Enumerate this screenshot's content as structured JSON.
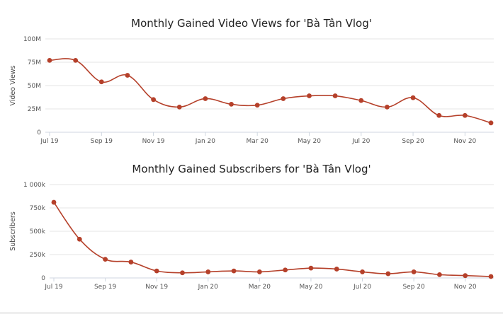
{
  "chart_data": [
    {
      "type": "line",
      "title": "Monthly Gained Video Views for 'Bà Tân Vlog'",
      "ylabel": "Video Views",
      "xlabel": "",
      "ylim": [
        0,
        100000000
      ],
      "y_ticks": [
        0,
        25000000,
        50000000,
        75000000,
        100000000
      ],
      "y_tick_labels": [
        "0",
        "25M",
        "50M",
        "75M",
        "100M"
      ],
      "x_tick_labels": [
        "Jul 19",
        "Sep 19",
        "Nov 19",
        "Jan 20",
        "Mar 20",
        "May 20",
        "Jul 20",
        "Sep 20",
        "Nov 20"
      ],
      "x_tick_months": [
        0,
        2,
        4,
        6,
        8,
        10,
        12,
        14,
        16
      ],
      "color": "#b5402a",
      "grid": true,
      "series": [
        {
          "x": [
            "2019-07",
            "2019-08",
            "2019-09",
            "2019-10",
            "2019-11",
            "2019-12",
            "2020-01",
            "2020-02",
            "2020-03",
            "2020-04",
            "2020-05",
            "2020-06",
            "2020-07",
            "2020-08",
            "2020-09",
            "2020-10",
            "2020-11",
            "2020-12"
          ],
          "values": [
            77000000,
            77000000,
            54000000,
            61000000,
            35000000,
            27000000,
            36000000,
            30000000,
            29000000,
            36000000,
            39000000,
            39000000,
            34000000,
            27000000,
            37000000,
            18000000,
            18000000,
            10000000
          ]
        }
      ]
    },
    {
      "type": "line",
      "title": "Monthly Gained Subscribers for 'Bà Tân Vlog'",
      "ylabel": "Subscribers",
      "xlabel": "",
      "ylim": [
        0,
        1000000
      ],
      "y_ticks": [
        0,
        250000,
        500000,
        750000,
        1000000
      ],
      "y_tick_labels": [
        "0",
        "250k",
        "500k",
        "750k",
        "1 000k"
      ],
      "x_tick_labels": [
        "Jul 19",
        "Sep 19",
        "Nov 19",
        "Jan 20",
        "Mar 20",
        "May 20",
        "Jul 20",
        "Sep 20",
        "Nov 20"
      ],
      "x_tick_months": [
        0,
        2,
        4,
        6,
        8,
        10,
        12,
        14,
        16
      ],
      "color": "#b5402a",
      "grid": true,
      "series": [
        {
          "x": [
            "2019-07",
            "2019-08",
            "2019-09",
            "2019-10",
            "2019-11",
            "2019-12",
            "2020-01",
            "2020-02",
            "2020-03",
            "2020-04",
            "2020-05",
            "2020-06",
            "2020-07",
            "2020-08",
            "2020-09",
            "2020-10",
            "2020-11",
            "2020-12"
          ],
          "values": [
            810000,
            415000,
            200000,
            170000,
            75000,
            55000,
            65000,
            75000,
            65000,
            85000,
            105000,
            95000,
            65000,
            45000,
            65000,
            35000,
            25000,
            15000
          ]
        }
      ]
    }
  ]
}
